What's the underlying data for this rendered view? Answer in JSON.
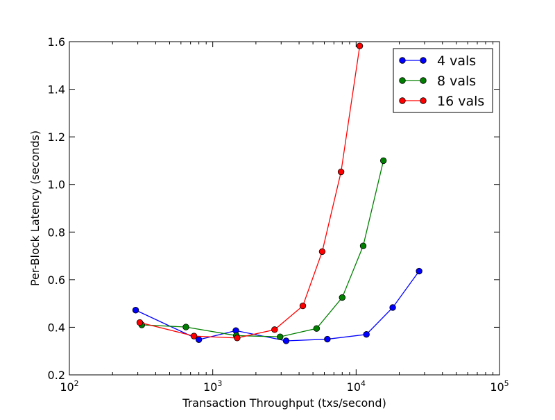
{
  "chart_data": {
    "type": "line",
    "title": "",
    "xlabel": "Transaction Throughput (txs/second)",
    "ylabel": "Per-Block Latency (seconds)",
    "x_scale": "log",
    "xlim": [
      100,
      100000
    ],
    "ylim": [
      0.2,
      1.6
    ],
    "x_ticks": [
      {
        "value": 100,
        "base": "10",
        "exp": "2"
      },
      {
        "value": 1000,
        "base": "10",
        "exp": "3"
      },
      {
        "value": 10000,
        "base": "10",
        "exp": "4"
      },
      {
        "value": 100000,
        "base": "10",
        "exp": "5"
      }
    ],
    "y_ticks": [
      {
        "value": 0.2,
        "label": "0.2"
      },
      {
        "value": 0.4,
        "label": "0.4"
      },
      {
        "value": 0.6,
        "label": "0.6"
      },
      {
        "value": 0.8,
        "label": "0.8"
      },
      {
        "value": 1.0,
        "label": "1.0"
      },
      {
        "value": 1.2,
        "label": "1.2"
      },
      {
        "value": 1.4,
        "label": "1.4"
      },
      {
        "value": 1.6,
        "label": "1.6"
      }
    ],
    "grid": false,
    "legend_position": "top-right",
    "series": [
      {
        "name": "4 vals",
        "color": "#0000ff",
        "x": [
          290,
          800,
          1450,
          3250,
          6300,
          11800,
          18000,
          27500
        ],
        "y": [
          0.472,
          0.348,
          0.386,
          0.343,
          0.35,
          0.37,
          0.483,
          0.636
        ]
      },
      {
        "name": "8 vals",
        "color": "#008000",
        "x": [
          320,
          650,
          1460,
          2950,
          5300,
          8000,
          11200,
          15500
        ],
        "y": [
          0.41,
          0.401,
          0.365,
          0.36,
          0.395,
          0.525,
          0.742,
          1.1
        ]
      },
      {
        "name": "16 vals",
        "color": "#ff0000",
        "x": [
          310,
          740,
          1480,
          2700,
          4250,
          5800,
          7850,
          10600
        ],
        "y": [
          0.42,
          0.363,
          0.355,
          0.39,
          0.49,
          0.718,
          1.053,
          1.582
        ]
      }
    ]
  }
}
